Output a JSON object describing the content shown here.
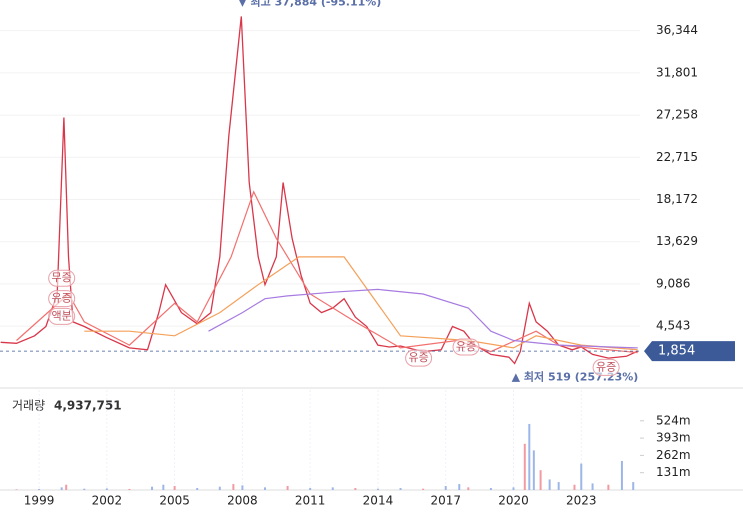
{
  "chart_data": {
    "type": "line",
    "x": [
      1997.3,
      1998,
      1998.8,
      1999.3,
      1999.8,
      2000.1,
      2000.3,
      2000.5,
      2001,
      2002,
      2003,
      2003.8,
      2004.3,
      2004.6,
      2005.3,
      2006,
      2006.6,
      2007,
      2007.4,
      2007.95,
      2008.3,
      2008.7,
      2009,
      2009.5,
      2009.8,
      2010.2,
      2010.6,
      2011,
      2011.5,
      2012,
      2012.5,
      2013,
      2013.5,
      2014,
      2014.5,
      2015,
      2016,
      2016.8,
      2017.3,
      2017.8,
      2018.3,
      2019,
      2019.8,
      2020.05,
      2020.3,
      2020.7,
      2021,
      2021.5,
      2022,
      2022.6,
      2023,
      2023.5,
      2024.2,
      2025,
      2025.5
    ],
    "series": [
      {
        "color": "#d9364a",
        "values": [
          2800,
          2700,
          3500,
          4500,
          8000,
          27000,
          12000,
          5000,
          4500,
          3300,
          2200,
          2000,
          6000,
          9000,
          6000,
          4800,
          6000,
          12000,
          25000,
          37884,
          20000,
          12000,
          9000,
          12000,
          20000,
          14000,
          10000,
          7000,
          6000,
          6500,
          7500,
          5500,
          4500,
          2500,
          2300,
          2400,
          1800,
          2000,
          4500,
          4000,
          2500,
          1500,
          1200,
          519,
          1800,
          7000,
          5000,
          4000,
          2500,
          2000,
          2300,
          1500,
          1100,
          1300,
          1854
        ]
      },
      {
        "color": "#f2706e",
        "x": [
          1998,
          2000.3,
          2001,
          2003,
          2005,
          2006,
          2007.5,
          2008.5,
          2009.5,
          2011,
          2013,
          2015,
          2017.5,
          2019,
          2021,
          2022,
          2025.5
        ],
        "values": [
          3000,
          8000,
          5000,
          2500,
          7000,
          5000,
          12000,
          19000,
          14000,
          8000,
          5000,
          2200,
          3000,
          1800,
          4000,
          2500,
          1700
        ]
      },
      {
        "color": "#f5a05a",
        "x": [
          2001,
          2003,
          2005,
          2007,
          2008.7,
          2010.5,
          2012.5,
          2015,
          2018,
          2020,
          2021,
          2023,
          2025.5
        ],
        "values": [
          4000,
          4000,
          3500,
          6000,
          9000,
          12000,
          12000,
          3500,
          3000,
          2200,
          3500,
          2500,
          2000
        ]
      },
      {
        "color": "#a77be0",
        "x": [
          2006.5,
          2008,
          2009,
          2010,
          2012,
          2014,
          2016,
          2018,
          2019,
          2020,
          2022,
          2025.5
        ],
        "values": [
          4000,
          6000,
          7500,
          7800,
          8200,
          8500,
          8000,
          6500,
          4000,
          3000,
          2500,
          2200
        ]
      }
    ],
    "xlim": [
      1997.27,
      2025.6
    ],
    "xticks": [
      1999,
      2002,
      2005,
      2008,
      2011,
      2014,
      2017,
      2020,
      2023
    ],
    "ylim": [
      -1900,
      39000
    ],
    "yticks": [
      {
        "value": 4543,
        "label": "4,543"
      },
      {
        "value": 9086,
        "label": "9,086"
      },
      {
        "value": 13629,
        "label": "13,629"
      },
      {
        "value": 18172,
        "label": "18,172"
      },
      {
        "value": 22715,
        "label": "22,715"
      },
      {
        "value": 27258,
        "label": "27,258"
      },
      {
        "value": 31801,
        "label": "31,801"
      },
      {
        "value": 36344,
        "label": "36,344"
      }
    ],
    "grid": true,
    "high": {
      "x": 2007.95,
      "y": 37884,
      "text": "▼ 최고 37,884 (-95.11%)"
    },
    "low": {
      "x": 2020.05,
      "y": 519,
      "text": "▲ 최저 519 (257.23%)"
    },
    "current": {
      "value": 1854,
      "label": "1,854",
      "color": "#3d5a98"
    },
    "events": [
      {
        "x": 2000.0,
        "y": 9700,
        "text": "무증"
      },
      {
        "x": 2000.0,
        "y": 7500,
        "text": "유증"
      },
      {
        "x": 2000.0,
        "y": 5600,
        "text": "액분"
      },
      {
        "x": 2015.8,
        "y": 1100,
        "text": "유증"
      },
      {
        "x": 2017.9,
        "y": 2300,
        "text": "유증"
      },
      {
        "x": 2024.1,
        "y": 100,
        "text": "유증"
      }
    ],
    "volume": {
      "label": "거래량",
      "total_label": "4,937,751",
      "color": "#9db6e8",
      "x": [
        1998,
        1999,
        2000,
        2000.2,
        2001,
        2002,
        2003,
        2004,
        2004.5,
        2005,
        2006,
        2007,
        2007.6,
        2008,
        2009,
        2010,
        2011,
        2012,
        2013,
        2014,
        2015,
        2016,
        2017,
        2017.6,
        2018,
        2019,
        2020,
        2020.5,
        2020.7,
        2020.9,
        2021.2,
        2021.6,
        2022,
        2022.7,
        2023,
        2023.5,
        2024.2,
        2024.8,
        2025.3
      ],
      "values": [
        5,
        8,
        20,
        40,
        10,
        12,
        8,
        25,
        40,
        30,
        15,
        25,
        45,
        35,
        20,
        30,
        15,
        20,
        15,
        10,
        15,
        10,
        30,
        45,
        20,
        15,
        20,
        350,
        500,
        300,
        150,
        80,
        60,
        40,
        200,
        50,
        40,
        220,
        60
      ],
      "ylim": [
        0,
        757
      ],
      "yticks": [
        {
          "value": 131,
          "label": "131m"
        },
        {
          "value": 262,
          "label": "262m"
        },
        {
          "value": 393,
          "label": "393m"
        },
        {
          "value": 524,
          "label": "524m"
        }
      ]
    }
  }
}
